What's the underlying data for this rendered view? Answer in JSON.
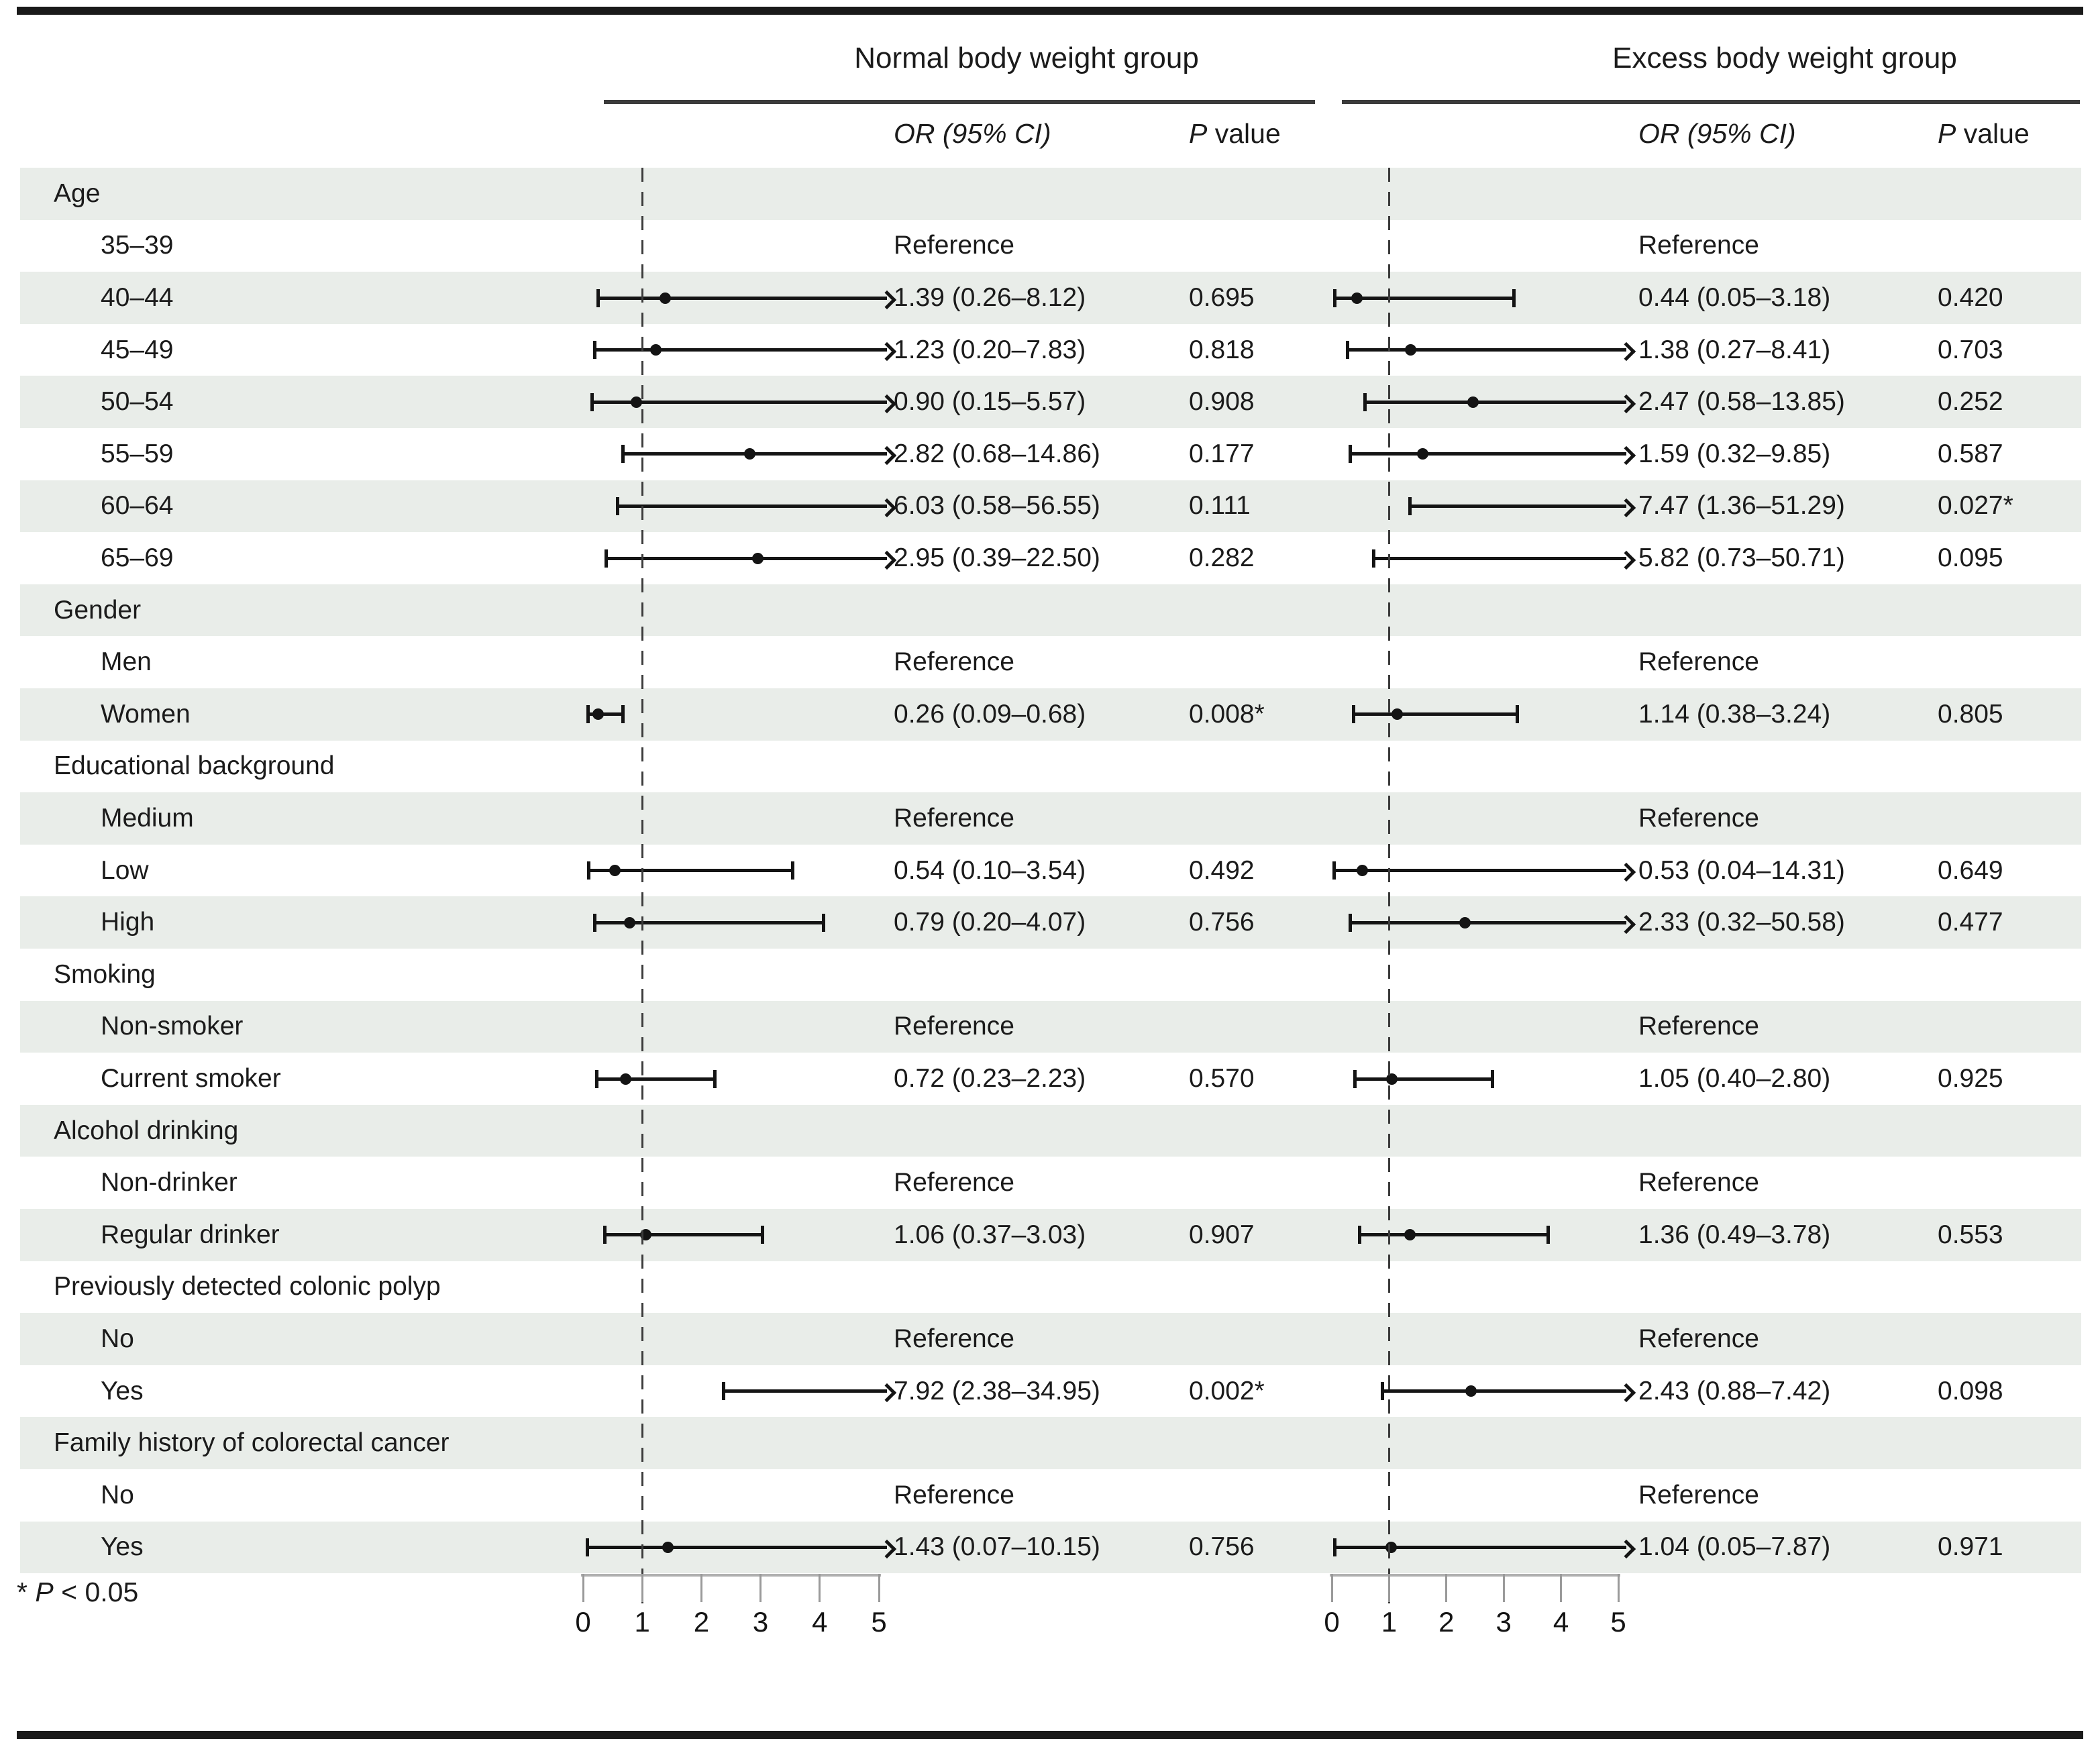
{
  "colors": {
    "stripe": "#e9ede9",
    "ink": "#1b1b1b",
    "line": "#141414",
    "axis_line": "#b0b0b0",
    "tick": "#9a9a9a",
    "dash": "#3c3c3c"
  },
  "chart_data": {
    "type": "forest",
    "title": "",
    "xlabel": "",
    "xlim": [
      0,
      5
    ],
    "x_ticks": [
      "0",
      "1",
      "2",
      "3",
      "4",
      "5"
    ],
    "reference_line": 1,
    "reference_text": "Reference",
    "grid": false,
    "groups": [
      {
        "title": "Normal body weight group"
      },
      {
        "title": "Excess body weight group"
      }
    ],
    "columns": {
      "or_header": "OR (95% CI)",
      "p_header_italic": "P",
      "p_header_rest": " value"
    },
    "footnote": {
      "star": "* ",
      "italic": "P",
      "rest": " < 0.05"
    },
    "rows": [
      {
        "label": "Age",
        "kind": "header"
      },
      {
        "label": "35–39",
        "kind": "item",
        "series": [
          {
            "ref": true
          },
          {
            "ref": true
          }
        ]
      },
      {
        "label": "40–44",
        "kind": "item",
        "series": [
          {
            "or": 1.39,
            "lo": 0.26,
            "hi": 8.12,
            "ci_text": "1.39 (0.26–8.12)",
            "p": "0.695"
          },
          {
            "or": 0.44,
            "lo": 0.05,
            "hi": 3.18,
            "ci_text": "0.44 (0.05–3.18)",
            "p": "0.420"
          }
        ]
      },
      {
        "label": "45–49",
        "kind": "item",
        "series": [
          {
            "or": 1.23,
            "lo": 0.2,
            "hi": 7.83,
            "ci_text": "1.23 (0.20–7.83)",
            "p": "0.818"
          },
          {
            "or": 1.38,
            "lo": 0.27,
            "hi": 8.41,
            "ci_text": "1.38 (0.27–8.41)",
            "p": "0.703"
          }
        ]
      },
      {
        "label": "50–54",
        "kind": "item",
        "series": [
          {
            "or": 0.9,
            "lo": 0.15,
            "hi": 5.57,
            "ci_text": "0.90 (0.15–5.57)",
            "p": "0.908"
          },
          {
            "or": 2.47,
            "lo": 0.58,
            "hi": 13.85,
            "ci_text": "2.47 (0.58–13.85)",
            "p": "0.252"
          }
        ]
      },
      {
        "label": "55–59",
        "kind": "item",
        "series": [
          {
            "or": 2.82,
            "lo": 0.68,
            "hi": 14.86,
            "ci_text": "2.82 (0.68–14.86)",
            "p": "0.177"
          },
          {
            "or": 1.59,
            "lo": 0.32,
            "hi": 9.85,
            "ci_text": "1.59 (0.32–9.85)",
            "p": "0.587"
          }
        ]
      },
      {
        "label": "60–64",
        "kind": "item",
        "series": [
          {
            "or": 6.03,
            "lo": 0.58,
            "hi": 56.55,
            "ci_text": "6.03 (0.58–56.55)",
            "p": "0.111"
          },
          {
            "or": 7.47,
            "lo": 1.36,
            "hi": 51.29,
            "ci_text": "7.47 (1.36–51.29)",
            "p": "0.027*"
          }
        ]
      },
      {
        "label": "65–69",
        "kind": "item",
        "series": [
          {
            "or": 2.95,
            "lo": 0.39,
            "hi": 22.5,
            "ci_text": "2.95 (0.39–22.50)",
            "p": "0.282"
          },
          {
            "or": 5.82,
            "lo": 0.73,
            "hi": 50.71,
            "ci_text": "5.82 (0.73–50.71)",
            "p": "0.095"
          }
        ]
      },
      {
        "label": "Gender",
        "kind": "header"
      },
      {
        "label": "Men",
        "kind": "item",
        "series": [
          {
            "ref": true
          },
          {
            "ref": true
          }
        ]
      },
      {
        "label": "Women",
        "kind": "item",
        "series": [
          {
            "or": 0.26,
            "lo": 0.09,
            "hi": 0.68,
            "ci_text": "0.26 (0.09–0.68)",
            "p": "0.008*"
          },
          {
            "or": 1.14,
            "lo": 0.38,
            "hi": 3.24,
            "ci_text": "1.14 (0.38–3.24)",
            "p": "0.805"
          }
        ]
      },
      {
        "label": "Educational background",
        "kind": "header"
      },
      {
        "label": "Medium",
        "kind": "item",
        "series": [
          {
            "ref": true
          },
          {
            "ref": true
          }
        ]
      },
      {
        "label": "Low",
        "kind": "item",
        "series": [
          {
            "or": 0.54,
            "lo": 0.1,
            "hi": 3.54,
            "ci_text": "0.54 (0.10–3.54)",
            "p": "0.492"
          },
          {
            "or": 0.53,
            "lo": 0.04,
            "hi": 14.31,
            "ci_text": "0.53 (0.04–14.31)",
            "p": "0.649"
          }
        ]
      },
      {
        "label": "High",
        "kind": "item",
        "series": [
          {
            "or": 0.79,
            "lo": 0.2,
            "hi": 4.07,
            "ci_text": "0.79 (0.20–4.07)",
            "p": "0.756"
          },
          {
            "or": 2.33,
            "lo": 0.32,
            "hi": 50.58,
            "ci_text": "2.33 (0.32–50.58)",
            "p": "0.477"
          }
        ]
      },
      {
        "label": "Smoking",
        "kind": "header"
      },
      {
        "label": "Non-smoker",
        "kind": "item",
        "series": [
          {
            "ref": true
          },
          {
            "ref": true
          }
        ]
      },
      {
        "label": "Current smoker",
        "kind": "item",
        "series": [
          {
            "or": 0.72,
            "lo": 0.23,
            "hi": 2.23,
            "ci_text": "0.72 (0.23–2.23)",
            "p": "0.570"
          },
          {
            "or": 1.05,
            "lo": 0.4,
            "hi": 2.8,
            "ci_text": "1.05 (0.40–2.80)",
            "p": "0.925"
          }
        ]
      },
      {
        "label": "Alcohol drinking",
        "kind": "header"
      },
      {
        "label": "Non-drinker",
        "kind": "item",
        "series": [
          {
            "ref": true
          },
          {
            "ref": true
          }
        ]
      },
      {
        "label": "Regular drinker",
        "kind": "item",
        "series": [
          {
            "or": 1.06,
            "lo": 0.37,
            "hi": 3.03,
            "ci_text": "1.06 (0.37–3.03)",
            "p": "0.907"
          },
          {
            "or": 1.36,
            "lo": 0.49,
            "hi": 3.78,
            "ci_text": "1.36 (0.49–3.78)",
            "p": "0.553"
          }
        ]
      },
      {
        "label": "Previously detected colonic polyp",
        "kind": "header"
      },
      {
        "label": "No",
        "kind": "item",
        "series": [
          {
            "ref": true
          },
          {
            "ref": true
          }
        ]
      },
      {
        "label": "Yes",
        "kind": "item",
        "series": [
          {
            "or": 7.92,
            "lo": 2.38,
            "hi": 34.95,
            "ci_text": "7.92 (2.38–34.95)",
            "p": "0.002*"
          },
          {
            "or": 2.43,
            "lo": 0.88,
            "hi": 7.42,
            "ci_text": "2.43 (0.88–7.42)",
            "p": "0.098"
          }
        ]
      },
      {
        "label": "Family history of colorectal cancer",
        "kind": "header"
      },
      {
        "label": "No",
        "kind": "item",
        "series": [
          {
            "ref": true
          },
          {
            "ref": true
          }
        ]
      },
      {
        "label": "Yes",
        "kind": "item",
        "series": [
          {
            "or": 1.43,
            "lo": 0.07,
            "hi": 10.15,
            "ci_text": "1.43 (0.07–10.15)",
            "p": "0.756"
          },
          {
            "or": 1.04,
            "lo": 0.05,
            "hi": 7.87,
            "ci_text": "1.04 (0.05–7.87)",
            "p": "0.971"
          }
        ]
      }
    ]
  }
}
